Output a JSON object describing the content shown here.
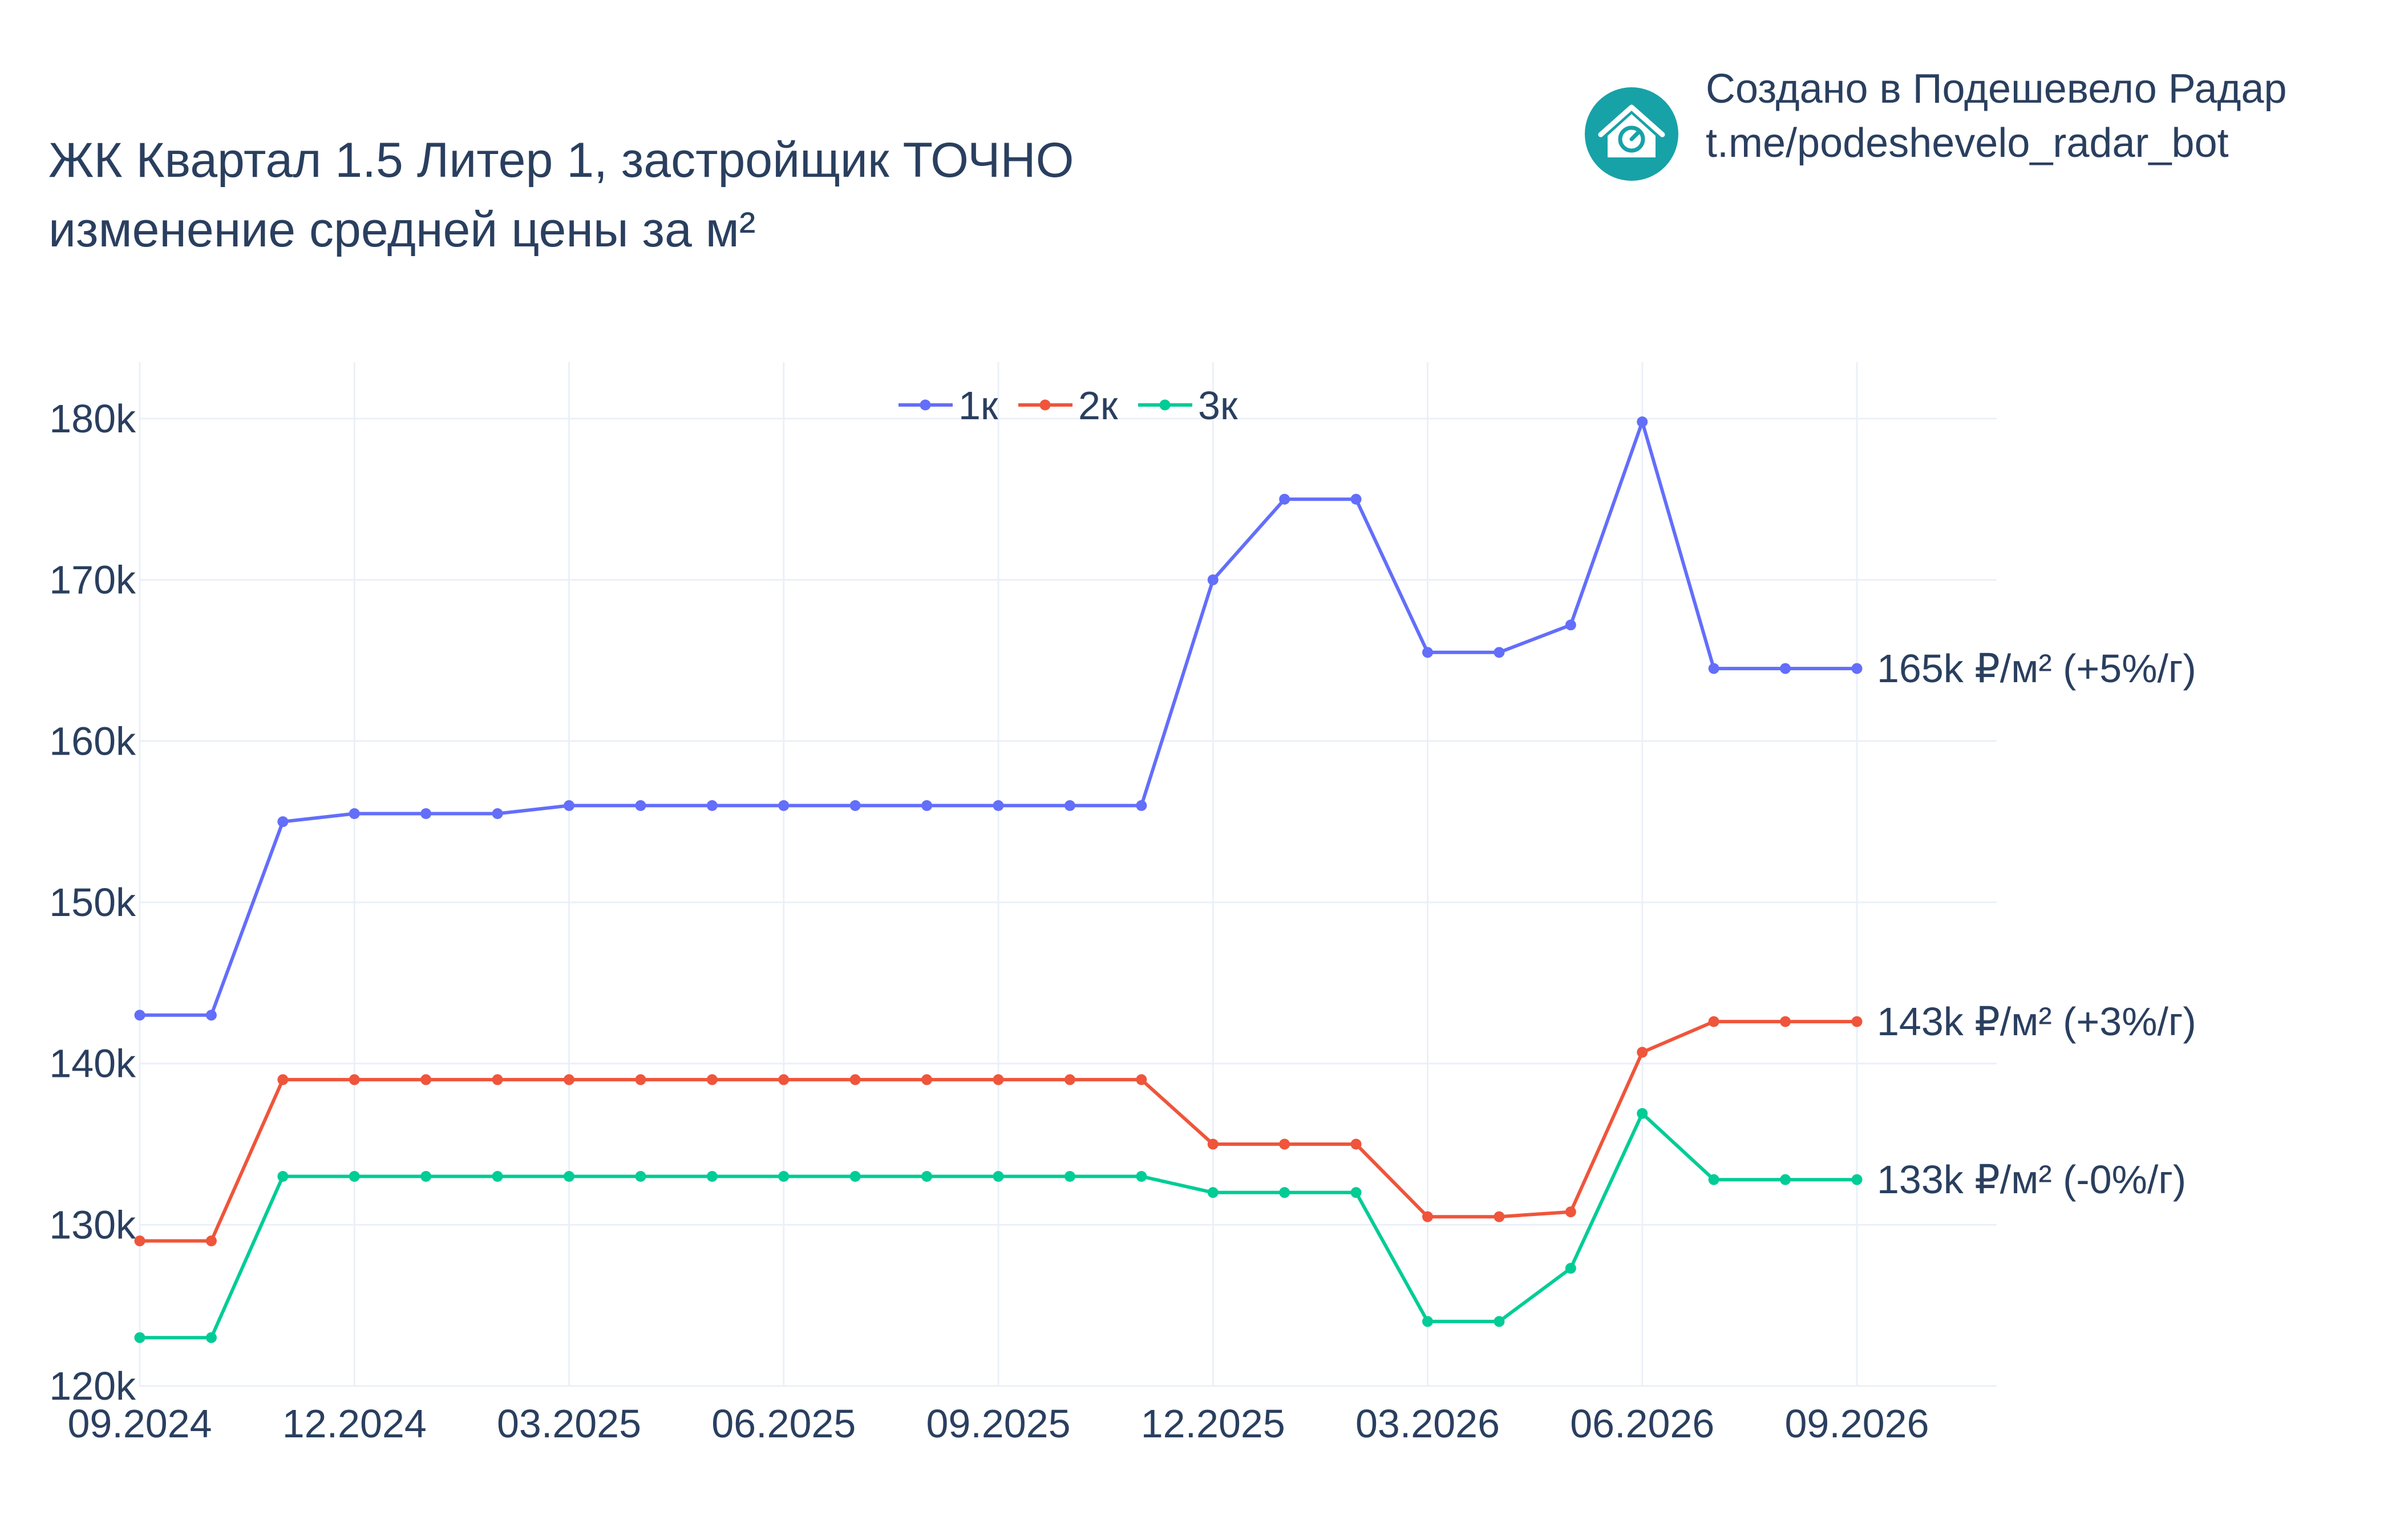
{
  "title": {
    "line1": "ЖК Квартал 1.5 Литер 1, застройщик ТОЧНО",
    "line2": "изменение средней цены за м²"
  },
  "branding": {
    "line1": "Создано в Подешевело Радар",
    "line2": "t.me/podeshevelo_radar_bot",
    "logo_icon": "house-chart-icon",
    "logo_color": "#17a2a8"
  },
  "chart_data": {
    "type": "line",
    "x": [
      "2024-09",
      "2024-10",
      "2024-11",
      "2024-12",
      "2025-01",
      "2025-02",
      "2025-03",
      "2025-04",
      "2025-05",
      "2025-06",
      "2025-07",
      "2025-08",
      "2025-09",
      "2025-10",
      "2025-11",
      "2025-12",
      "2026-01",
      "2026-02",
      "2026-03",
      "2026-04",
      "2026-05",
      "2026-06",
      "2026-07",
      "2026-08",
      "2026-09"
    ],
    "x_ticks": [
      "2024-09",
      "2024-12",
      "2025-03",
      "2025-06",
      "2025-09",
      "2025-12",
      "2026-03",
      "2026-06",
      "2026-09"
    ],
    "x_tick_labels": [
      "09.2024",
      "12.2024",
      "03.2025",
      "06.2025",
      "09.2025",
      "12.2025",
      "03.2026",
      "06.2026",
      "09.2026"
    ],
    "y_ticks": [
      120000,
      130000,
      140000,
      150000,
      160000,
      170000,
      180000
    ],
    "y_tick_labels": [
      "120k",
      "130k",
      "140k",
      "150k",
      "160k",
      "170k",
      "180k"
    ],
    "ylim": [
      120000,
      183500
    ],
    "grid": true,
    "legend_position": "top-center",
    "series": [
      {
        "name": "1к",
        "color": "#636efa",
        "values": [
          143000,
          143000,
          155000,
          155500,
          155500,
          155500,
          156000,
          156000,
          156000,
          156000,
          156000,
          156000,
          156000,
          156000,
          156000,
          170000,
          175000,
          175000,
          165500,
          165500,
          167200,
          179800,
          164500,
          164500,
          164500
        ],
        "end_label": "165k ₽/м² (+5%/г)"
      },
      {
        "name": "2к",
        "color": "#ef553b",
        "values": [
          129000,
          129000,
          139000,
          139000,
          139000,
          139000,
          139000,
          139000,
          139000,
          139000,
          139000,
          139000,
          139000,
          139000,
          139000,
          135000,
          135000,
          135000,
          130500,
          130500,
          130800,
          140700,
          142600,
          142600,
          142600
        ],
        "end_label": "143k ₽/м² (+3%/г)"
      },
      {
        "name": "3к",
        "color": "#00cc96",
        "values": [
          123000,
          123000,
          133000,
          133000,
          133000,
          133000,
          133000,
          133000,
          133000,
          133000,
          133000,
          133000,
          133000,
          133000,
          133000,
          132000,
          132000,
          132000,
          124000,
          124000,
          127300,
          136900,
          132800,
          132800,
          132800
        ],
        "end_label": "133k ₽/м² (-0%/г)"
      }
    ]
  }
}
